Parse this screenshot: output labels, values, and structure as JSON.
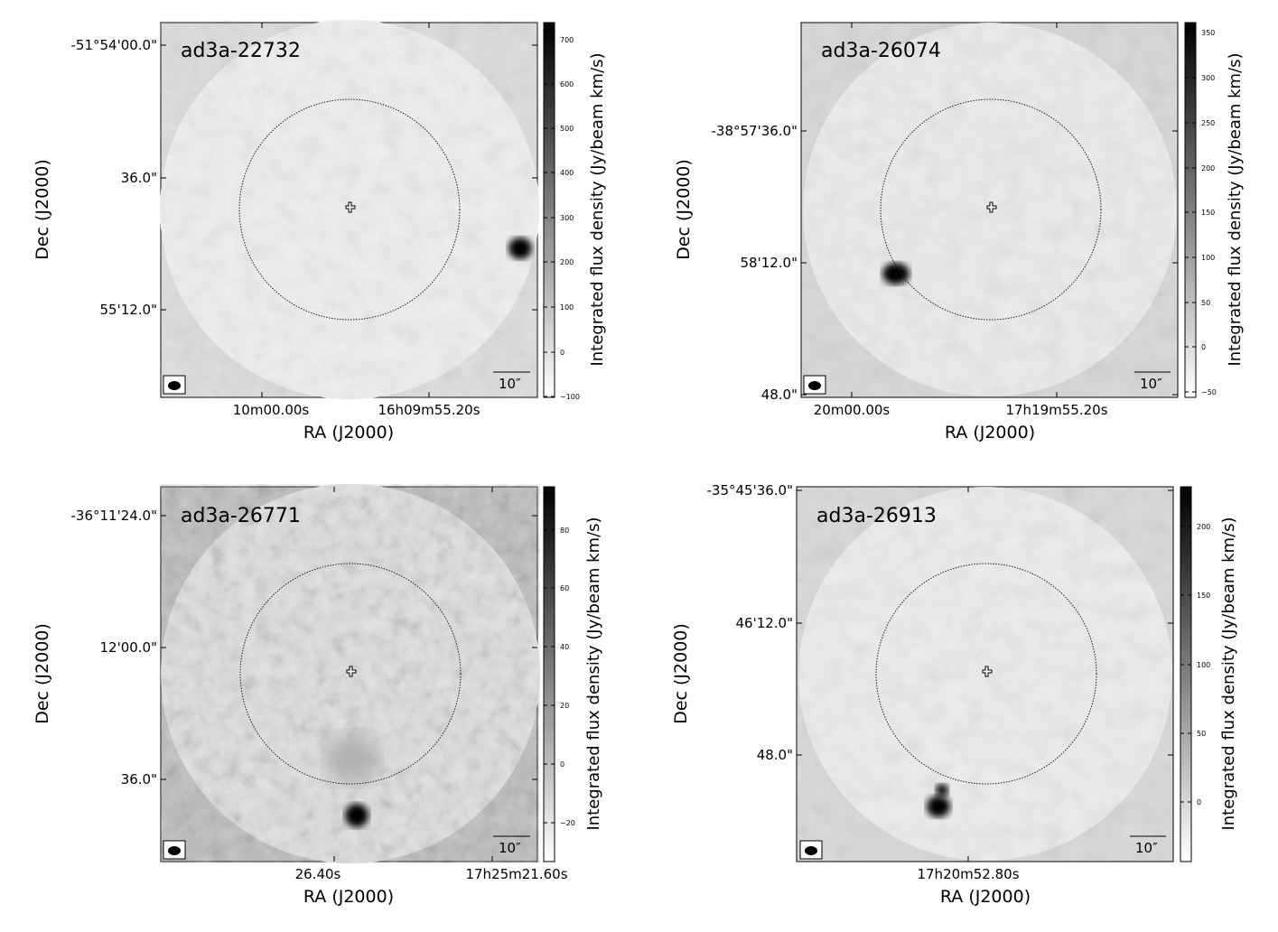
{
  "figure": {
    "panels": [
      {
        "name": "ad3a-22732",
        "xlabel": "RA (J2000)",
        "ylabel": "Dec (J2000)",
        "cblabel": "Integrated flux density (Jy/beam km/s)",
        "dec_ticks": [
          "-51°54'00.0\"",
          "36.0\"",
          "55'12.0\""
        ],
        "ra_ticks": [
          "10m00.00s",
          "16h09m55.20s"
        ],
        "cb_ticks": [
          "700",
          "600",
          "500",
          "400",
          "300",
          "200",
          "100",
          "0",
          "−100"
        ],
        "cb_range": [
          -100,
          740
        ],
        "scalebar": "10″",
        "background": "#dcdcdc"
      },
      {
        "name": "ad3a-26074",
        "xlabel": "RA (J2000)",
        "ylabel": "Dec (J2000)",
        "cblabel": "Integrated flux density (Jy/beam km/s)",
        "dec_ticks": [
          "-38°57'36.0\"",
          "58'12.0\"",
          "48.0\""
        ],
        "ra_ticks": [
          "20m00.00s",
          "17h19m55.20s"
        ],
        "cb_ticks": [
          "350",
          "300",
          "250",
          "200",
          "150",
          "100",
          "50",
          "0",
          "−50"
        ],
        "cb_range": [
          -55,
          360
        ],
        "scalebar": "10″",
        "background": "#d7d7d7"
      },
      {
        "name": "ad3a-26771",
        "xlabel": "RA (J2000)",
        "ylabel": "Dec (J2000)",
        "cblabel": "Integrated flux density (Jy/beam km/s)",
        "dec_ticks": [
          "-36°11'24.0\"",
          "12'00.0\"",
          "36.0\""
        ],
        "ra_ticks": [
          "26.40s",
          "17h25m21.60s"
        ],
        "cb_ticks": [
          "80",
          "60",
          "40",
          "20",
          "0",
          "−20"
        ],
        "cb_range": [
          -33,
          95
        ],
        "scalebar": "10″",
        "background": "#bcbcbc"
      },
      {
        "name": "ad3a-26913",
        "xlabel": "RA (J2000)",
        "ylabel": "Dec (J2000)",
        "cblabel": "Integrated flux density (Jy/beam km/s)",
        "dec_ticks": [
          "-35°45'36.0\"",
          "46'12.0\"",
          "48.0\""
        ],
        "ra_ticks": [
          "17h20m52.80s"
        ],
        "cb_ticks": [
          "200",
          "150",
          "100",
          "50",
          "0"
        ],
        "cb_range": [
          -42,
          230
        ],
        "scalebar": "10″",
        "background": "#d8d8d8"
      }
    ]
  }
}
